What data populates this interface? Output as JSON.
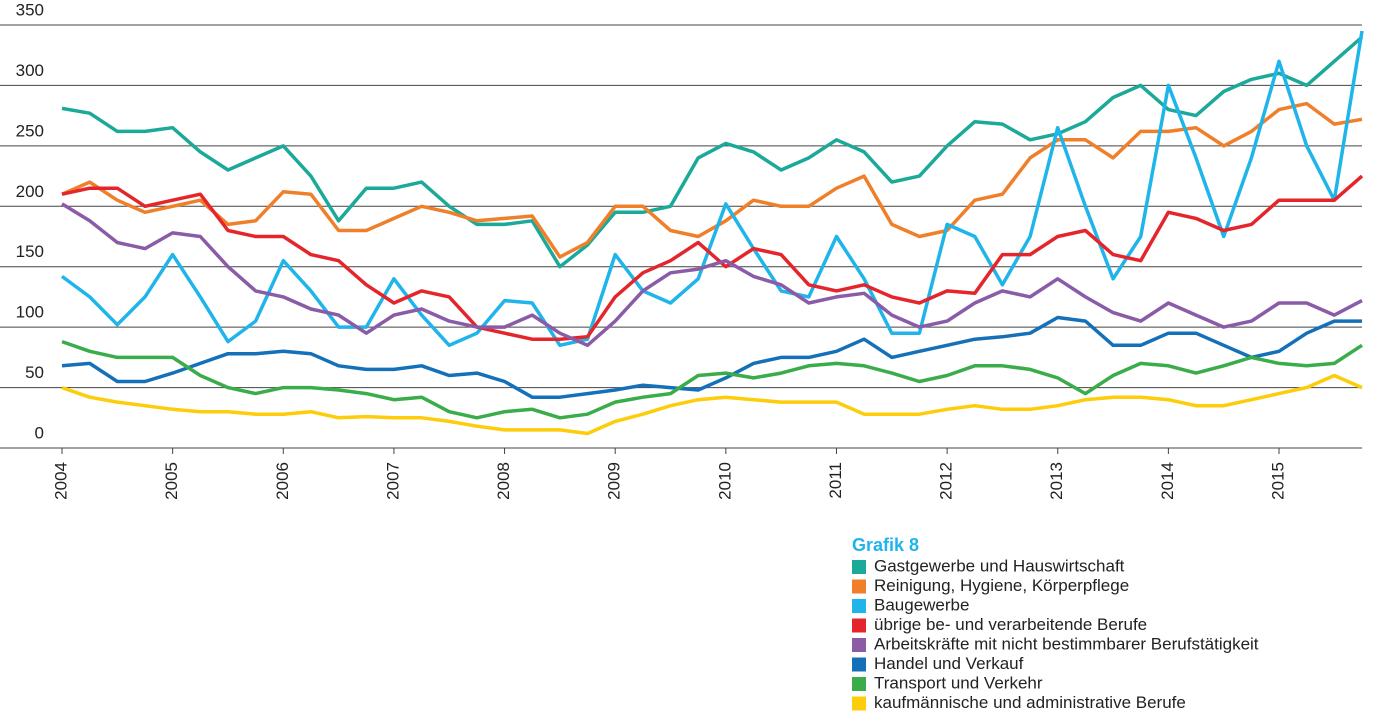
{
  "chart_data": {
    "type": "line",
    "legend_title": "Grafik 8",
    "x": [
      2004,
      2004.25,
      2004.5,
      2004.75,
      2005,
      2005.25,
      2005.5,
      2005.75,
      2006,
      2006.25,
      2006.5,
      2006.75,
      2007,
      2007.25,
      2007.5,
      2007.75,
      2008,
      2008.25,
      2008.5,
      2008.75,
      2009,
      2009.25,
      2009.5,
      2009.75,
      2010,
      2010.25,
      2010.5,
      2010.75,
      2011,
      2011.25,
      2011.5,
      2011.75,
      2012,
      2012.25,
      2012.5,
      2012.75,
      2013,
      2013.25,
      2013.5,
      2013.75,
      2014,
      2014.25,
      2014.5,
      2014.75,
      2015,
      2015.25,
      2015.5,
      2015.75
    ],
    "xlim": [
      2004,
      2015.75
    ],
    "xticks": [
      2004,
      2005,
      2006,
      2007,
      2008,
      2009,
      2010,
      2011,
      2012,
      2013,
      2014,
      2015
    ],
    "ylim": [
      0,
      350
    ],
    "yticks": [
      0,
      50,
      100,
      150,
      200,
      250,
      300,
      350
    ],
    "grid": true,
    "series": [
      {
        "name": "Gastgewerbe und Hauswirtschaft",
        "color": "#1ba99a",
        "values": [
          281,
          277,
          262,
          262,
          265,
          245,
          230,
          240,
          250,
          225,
          188,
          215,
          215,
          220,
          200,
          185,
          185,
          188,
          150,
          168,
          195,
          195,
          200,
          240,
          252,
          245,
          230,
          240,
          255,
          245,
          220,
          225,
          250,
          270,
          268,
          255,
          260,
          270,
          290,
          300,
          280,
          275,
          295,
          305,
          310,
          300,
          320,
          340
        ]
      },
      {
        "name": "Reinigung, Hygiene, Körperpflege",
        "color": "#f07f2a",
        "values": [
          210,
          220,
          205,
          195,
          200,
          205,
          185,
          188,
          212,
          210,
          180,
          180,
          190,
          200,
          195,
          188,
          190,
          192,
          158,
          170,
          200,
          200,
          180,
          175,
          188,
          205,
          200,
          200,
          215,
          225,
          185,
          175,
          180,
          205,
          210,
          240,
          255,
          255,
          240,
          262,
          262,
          265,
          250,
          262,
          280,
          285,
          268,
          272
        ]
      },
      {
        "name": "Baugewerbe",
        "color": "#1fb5ea",
        "values": [
          142,
          125,
          102,
          125,
          160,
          125,
          88,
          105,
          155,
          130,
          100,
          100,
          140,
          110,
          85,
          95,
          122,
          120,
          85,
          90,
          160,
          130,
          120,
          140,
          202,
          165,
          130,
          125,
          175,
          140,
          95,
          95,
          185,
          175,
          135,
          175,
          265,
          200,
          140,
          175,
          300,
          240,
          175,
          240,
          320,
          250,
          205,
          345
        ]
      },
      {
        "name": "übrige be- und verarbeitende Berufe",
        "color": "#e4262c",
        "values": [
          210,
          215,
          215,
          200,
          205,
          210,
          180,
          175,
          175,
          160,
          155,
          135,
          120,
          130,
          125,
          100,
          95,
          90,
          90,
          92,
          125,
          145,
          155,
          170,
          150,
          165,
          160,
          135,
          130,
          135,
          125,
          120,
          130,
          128,
          160,
          160,
          175,
          180,
          160,
          155,
          195,
          190,
          180,
          185,
          205,
          205,
          205,
          225
        ]
      },
      {
        "name": "Arbeitskräfte mit nicht bestimmbarer Berufstätigkeit",
        "color": "#8a5ba7",
        "values": [
          202,
          188,
          170,
          165,
          178,
          175,
          150,
          130,
          125,
          115,
          110,
          95,
          110,
          115,
          105,
          100,
          100,
          110,
          95,
          85,
          105,
          130,
          145,
          148,
          155,
          142,
          135,
          120,
          125,
          128,
          110,
          100,
          105,
          120,
          130,
          125,
          140,
          125,
          112,
          105,
          120,
          110,
          100,
          105,
          120,
          120,
          110,
          122
        ]
      },
      {
        "name": "Handel und Verkauf",
        "color": "#1470b8",
        "values": [
          68,
          70,
          55,
          55,
          62,
          70,
          78,
          78,
          80,
          78,
          68,
          65,
          65,
          68,
          60,
          62,
          55,
          42,
          42,
          45,
          48,
          52,
          50,
          48,
          58,
          70,
          75,
          75,
          80,
          90,
          75,
          80,
          85,
          90,
          92,
          95,
          108,
          105,
          85,
          85,
          95,
          95,
          85,
          75,
          80,
          95,
          105,
          105
        ]
      },
      {
        "name": "Transport und Verkehr",
        "color": "#3aac4a",
        "values": [
          88,
          80,
          75,
          75,
          75,
          60,
          50,
          45,
          50,
          50,
          48,
          45,
          40,
          42,
          30,
          25,
          30,
          32,
          25,
          28,
          38,
          42,
          45,
          60,
          62,
          58,
          62,
          68,
          70,
          68,
          62,
          55,
          60,
          68,
          68,
          65,
          58,
          45,
          60,
          70,
          68,
          62,
          68,
          75,
          70,
          68,
          70,
          85
        ]
      },
      {
        "name": "kaufmännische und administrative Berufe",
        "color": "#fdcc0a",
        "values": [
          50,
          42,
          38,
          35,
          32,
          30,
          30,
          28,
          28,
          30,
          25,
          26,
          25,
          25,
          22,
          18,
          15,
          15,
          15,
          12,
          22,
          28,
          35,
          40,
          42,
          40,
          38,
          38,
          38,
          28,
          28,
          28,
          32,
          35,
          32,
          32,
          35,
          40,
          42,
          42,
          40,
          35,
          35,
          40,
          45,
          50,
          60,
          50
        ]
      }
    ]
  }
}
